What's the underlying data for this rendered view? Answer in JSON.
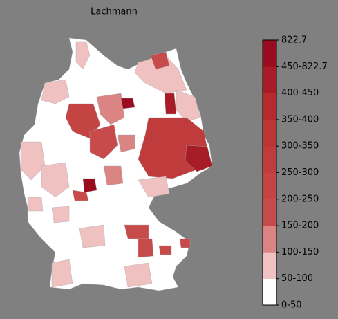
{
  "title": "Lachmann",
  "colorbar": {
    "labels": [
      "0-50",
      "50-100",
      "100-150",
      "150-200",
      "200-250",
      "250-300",
      "300-350",
      "350-400",
      "400-450",
      "450-822.7",
      "822.7"
    ],
    "colors": [
      "#ffffff",
      "#efc1c1",
      "#da8484",
      "#c84b4b",
      "#c44444",
      "#c03c3c",
      "#bc3535",
      "#b52b2d",
      "#a81c28",
      "#990b1f"
    ]
  }
}
